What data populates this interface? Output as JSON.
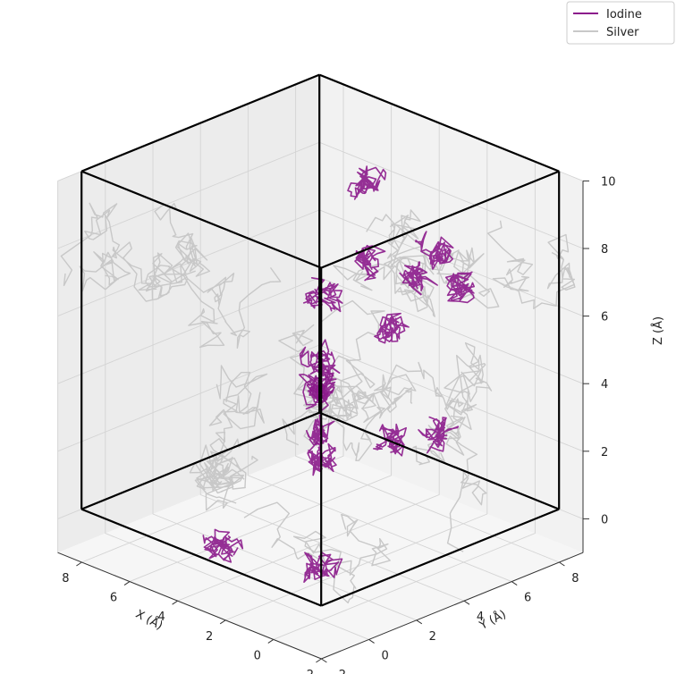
{
  "chart_data": {
    "type": "line3d",
    "title": "",
    "xlabel": "X (Å)",
    "ylabel": "Y (Å)",
    "zlabel": "Z (Å)",
    "xlim": [
      -2,
      9
    ],
    "ylim": [
      -2,
      9
    ],
    "zlim": [
      -1,
      10
    ],
    "xticks": [
      "−2",
      "0",
      "2",
      "4",
      "6",
      "8"
    ],
    "yticks": [
      "−2",
      "0",
      "2",
      "4",
      "6",
      "8"
    ],
    "zticks": [
      "0",
      "2",
      "4",
      "6",
      "8",
      "10"
    ],
    "grid": true,
    "legend": {
      "placement": "top-right"
    },
    "box": {
      "from": [
        -1,
        -1,
        0
      ],
      "to": [
        9,
        9,
        10
      ],
      "color": "#000000"
    },
    "series": [
      {
        "name": "Iodine",
        "color": "#8b1a8b"
      },
      {
        "name": "Silver",
        "color": "#c8c8c8"
      }
    ]
  }
}
